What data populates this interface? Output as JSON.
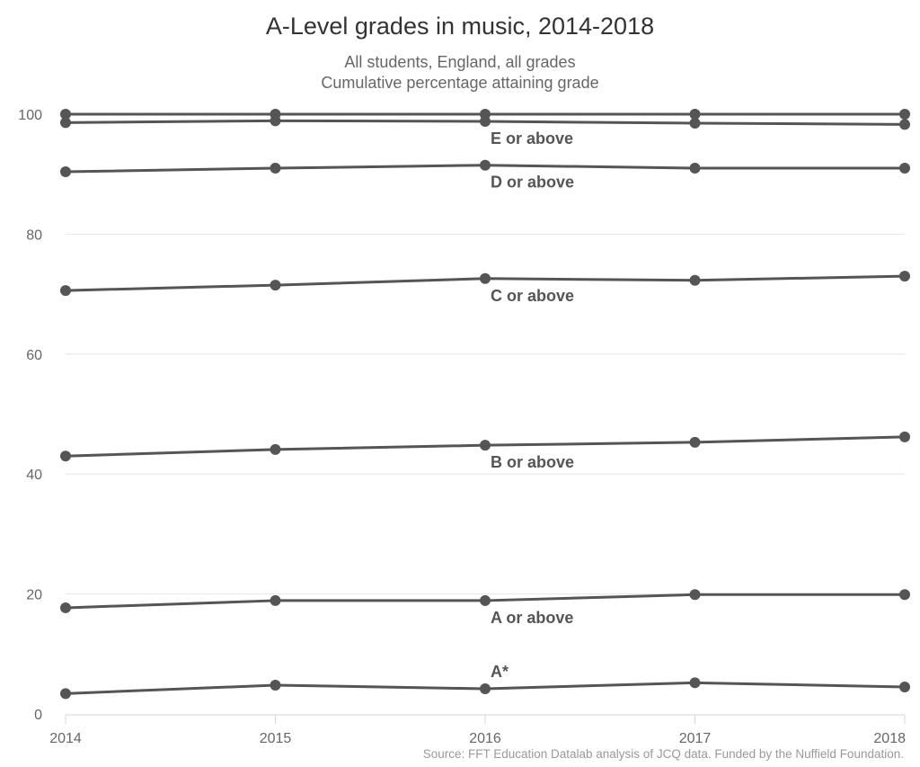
{
  "header": {
    "title": "A-Level grades in music, 2014-2018",
    "subtitle_line1": "All students, England, all grades",
    "subtitle_line2": "Cumulative percentage attaining grade"
  },
  "footer": {
    "source": "Source: FFT Education Datalab analysis of JCQ data. Funded by the Nuffield Foundation."
  },
  "colors": {
    "line": "#555555",
    "grid": "#e6e6e6",
    "axis": "#ccd6eb",
    "tick_text": "#666666"
  },
  "chart_data": {
    "type": "line",
    "title": "A-Level grades in music, 2014-2018",
    "subtitle": "All students, England, all grades / Cumulative percentage attaining grade",
    "xlabel": "",
    "ylabel": "",
    "x": [
      "2014",
      "2015",
      "2016",
      "2017",
      "2018"
    ],
    "ylim": [
      0,
      100
    ],
    "yticks": [
      0,
      20,
      40,
      60,
      80,
      100
    ],
    "grid": true,
    "legend": "inline labels at 2016",
    "series": [
      {
        "name": "All grades",
        "label": "",
        "values": [
          100,
          100,
          100,
          100,
          100
        ]
      },
      {
        "name": "E or above",
        "label": "E or above",
        "values": [
          98.6,
          98.9,
          98.8,
          98.5,
          98.3
        ]
      },
      {
        "name": "D or above",
        "label": "D or above",
        "values": [
          90.4,
          91.0,
          91.5,
          91.0,
          91.0
        ]
      },
      {
        "name": "C or above",
        "label": "C or above",
        "values": [
          70.6,
          71.5,
          72.6,
          72.3,
          73.0
        ]
      },
      {
        "name": "B or above",
        "label": "B or above",
        "values": [
          43.0,
          44.1,
          44.8,
          45.3,
          46.2
        ]
      },
      {
        "name": "A or above",
        "label": "A or above",
        "values": [
          17.7,
          18.9,
          18.9,
          19.9,
          19.9
        ]
      },
      {
        "name": "A*",
        "label": "A*",
        "values": [
          3.4,
          4.8,
          4.2,
          5.2,
          4.5
        ]
      }
    ]
  }
}
